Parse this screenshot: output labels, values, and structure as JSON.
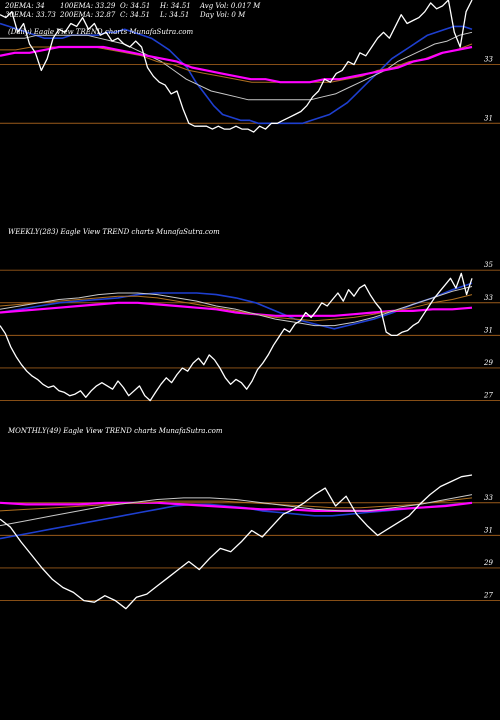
{
  "header": {
    "ema20": "20EMA: 34",
    "ema100": "100EMA: 33.29",
    "open": "O: 34.51",
    "high": "H: 34.51",
    "avg_vol": "Avg Vol: 0.017 M",
    "ema30": "30EMA: 33.73",
    "ema200": "200EMA: 32.87",
    "close": "C: 34.51",
    "low": "L: 34.51",
    "day_vol": "Day Vol: 0  M"
  },
  "chart_data": [
    {
      "type": "line",
      "title": "(Daily) Eagle  View  TREND charts MunafaSutra.com",
      "ylim": [
        30.6,
        35.2
      ],
      "yticks": [
        "33",
        "31"
      ],
      "grid": "horizontal",
      "series": [
        {
          "color": "#ffffff",
          "values": [
            34.7,
            34.6,
            34.8,
            34.1,
            34.4,
            33.7,
            33.4,
            32.8,
            33.2,
            33.9,
            34.2,
            34.1,
            34.4,
            34.3,
            34.6,
            34.2,
            34.4,
            34.0,
            34.1,
            33.8,
            33.9,
            33.7,
            33.6,
            33.8,
            33.6,
            32.9,
            32.6,
            32.4,
            32.3,
            32.0,
            32.1,
            31.5,
            31.0,
            30.9,
            30.9,
            30.9,
            30.8,
            30.9,
            30.8,
            30.8,
            30.9,
            30.8,
            30.8,
            30.7,
            30.9,
            30.8,
            31.0,
            31.0,
            31.1,
            31.2,
            31.3,
            31.4,
            31.6,
            31.9,
            32.1,
            32.5,
            32.4,
            32.7,
            32.8,
            33.1,
            33.0,
            33.4,
            33.3,
            33.6,
            33.9,
            34.1,
            33.9,
            34.3,
            34.7,
            34.4,
            34.5,
            34.6,
            34.8,
            35.1,
            34.9,
            35.0,
            35.2,
            34.1,
            33.6,
            34.8,
            35.2
          ]
        },
        {
          "color": "#1e3fd0",
          "values": [
            34.4,
            34.3,
            34.2,
            34.1,
            34.0,
            33.9,
            33.9,
            33.9,
            34.0,
            34.0,
            34.0,
            34.0,
            34.1,
            34.1,
            34.2,
            34.1,
            34.0,
            33.9,
            33.7,
            33.5,
            33.2,
            32.9,
            32.4,
            32.0,
            31.6,
            31.3,
            31.2,
            31.1,
            31.1,
            31.0,
            31.0,
            31.0,
            31.0,
            31.0,
            31.0,
            31.1,
            31.2,
            31.3,
            31.5,
            31.7,
            32.0,
            32.3,
            32.6,
            32.9,
            33.2,
            33.4,
            33.6,
            33.8,
            34.0,
            34.1,
            34.2,
            34.3,
            34.3,
            34.2
          ]
        },
        {
          "color": "#c8c8c8",
          "values": [
            33.9,
            33.9,
            33.9,
            34.0,
            34.0,
            34.0,
            34.0,
            34.0,
            33.9,
            33.8,
            33.7,
            33.5,
            33.3,
            33.1,
            32.8,
            32.5,
            32.3,
            32.1,
            32.0,
            31.9,
            31.8,
            31.8,
            31.8,
            31.8,
            31.8,
            31.8,
            31.9,
            32.0,
            32.2,
            32.4,
            32.6,
            32.8,
            33.1,
            33.3,
            33.5,
            33.7,
            33.8,
            34.0,
            34.1
          ]
        },
        {
          "color": "#b07020",
          "values": [
            33.5,
            33.5,
            33.6,
            33.6,
            33.6,
            33.6,
            33.6,
            33.5,
            33.4,
            33.3,
            33.1,
            33.0,
            32.8,
            32.7,
            32.6,
            32.5,
            32.4,
            32.4,
            32.4,
            32.4,
            32.4,
            32.4,
            32.5,
            32.6,
            32.8,
            32.9,
            33.1,
            33.2,
            33.4,
            33.5,
            33.7
          ]
        },
        {
          "color": "#ff00ff",
          "values": [
            33.3,
            33.4,
            33.4,
            33.5,
            33.6,
            33.6,
            33.6,
            33.6,
            33.5,
            33.4,
            33.3,
            33.2,
            33.1,
            32.9,
            32.8,
            32.7,
            32.6,
            32.5,
            32.5,
            32.4,
            32.4,
            32.4,
            32.5,
            32.5,
            32.6,
            32.7,
            32.8,
            32.9,
            33.1,
            33.2,
            33.4,
            33.5,
            33.6
          ]
        }
      ]
    },
    {
      "type": "line",
      "title": "WEEKLY(283) Eagle  View  TREND charts MunafaSutra.com",
      "ylim": [
        26.3,
        35.5
      ],
      "yticks": [
        "35",
        "33",
        "31",
        "29",
        "27"
      ],
      "grid": "horizontal",
      "series": [
        {
          "color": "#ffffff",
          "values": [
            31.6,
            31.1,
            30.3,
            29.7,
            29.2,
            28.8,
            28.5,
            28.3,
            28.0,
            27.8,
            27.9,
            27.6,
            27.5,
            27.3,
            27.4,
            27.6,
            27.2,
            27.6,
            27.9,
            28.1,
            27.9,
            27.7,
            28.2,
            27.8,
            27.3,
            27.6,
            27.9,
            27.3,
            27.0,
            27.5,
            28.0,
            28.4,
            28.1,
            28.6,
            29.0,
            28.8,
            29.3,
            29.6,
            29.2,
            29.8,
            29.5,
            29.0,
            28.4,
            28.0,
            28.3,
            28.1,
            27.7,
            28.2,
            28.9,
            29.3,
            29.8,
            30.4,
            30.9,
            31.4,
            31.2,
            31.7,
            31.9,
            32.4,
            32.1,
            32.5,
            33.0,
            32.8,
            33.2,
            33.6,
            33.1,
            33.8,
            33.4,
            33.9,
            34.1,
            33.5,
            33.0,
            32.6,
            31.2,
            31.0,
            31.0,
            31.2,
            31.3,
            31.6,
            31.8,
            32.3,
            32.8,
            33.3,
            33.7,
            34.1,
            34.5,
            33.9,
            34.8,
            33.5,
            34.5
          ]
        },
        {
          "color": "#1e3fd0",
          "values": [
            32.4,
            32.6,
            32.8,
            33.0,
            33.1,
            33.2,
            33.3,
            33.5,
            33.6,
            33.6,
            33.6,
            33.5,
            33.3,
            33.0,
            32.5,
            32.0,
            31.7,
            31.4,
            31.7,
            32.0,
            32.4,
            32.9,
            33.3,
            33.8,
            34.2
          ]
        },
        {
          "color": "#ff00ff",
          "values": [
            32.4,
            32.5,
            32.6,
            32.7,
            32.8,
            32.9,
            33.0,
            33.0,
            32.9,
            32.8,
            32.7,
            32.6,
            32.4,
            32.3,
            32.2,
            32.2,
            32.2,
            32.2,
            32.3,
            32.4,
            32.5,
            32.5,
            32.6,
            32.6,
            32.7
          ]
        },
        {
          "color": "#b07020",
          "values": [
            32.8,
            32.9,
            33.0,
            33.1,
            33.2,
            33.3,
            33.4,
            33.4,
            33.3,
            33.1,
            32.9,
            32.7,
            32.5,
            32.3,
            32.1,
            32.0,
            31.9,
            32.0,
            32.1,
            32.3,
            32.5,
            32.7,
            33.0,
            33.2,
            33.5
          ]
        },
        {
          "color": "#c8c8c8",
          "values": [
            32.6,
            32.8,
            33.0,
            33.2,
            33.3,
            33.5,
            33.6,
            33.6,
            33.5,
            33.3,
            33.1,
            32.8,
            32.6,
            32.3,
            32.0,
            31.8,
            31.6,
            31.6,
            31.8,
            32.1,
            32.5,
            32.9,
            33.3,
            33.7,
            34.0
          ]
        }
      ]
    },
    {
      "type": "line",
      "title": "MONTHLY(49) Eagle  View  TREND charts MunafaSutra.com",
      "ylim": [
        26.3,
        35.5
      ],
      "yticks": [
        "33",
        "31",
        "29",
        "27"
      ],
      "grid": "horizontal",
      "series": [
        {
          "color": "#ffffff",
          "values": [
            32.0,
            31.5,
            30.6,
            29.8,
            29.0,
            28.3,
            27.8,
            27.5,
            27.0,
            26.9,
            27.3,
            27.0,
            26.5,
            27.2,
            27.4,
            27.9,
            28.4,
            28.9,
            29.4,
            28.9,
            29.6,
            30.2,
            30.0,
            30.6,
            31.3,
            30.9,
            31.6,
            32.3,
            32.6,
            33.0,
            33.5,
            33.9,
            32.8,
            33.4,
            32.3,
            31.6,
            31.0,
            31.4,
            31.8,
            32.2,
            32.9,
            33.5,
            34.0,
            34.3,
            34.6,
            34.7
          ]
        },
        {
          "color": "#1e3fd0",
          "values": [
            30.8,
            31.0,
            31.2,
            31.4,
            31.6,
            31.8,
            32.0,
            32.2,
            32.4,
            32.6,
            32.8,
            32.9,
            32.9,
            32.8,
            32.7,
            32.5,
            32.4,
            32.3,
            32.2,
            32.2,
            32.3,
            32.4,
            32.5,
            32.6,
            32.7,
            32.8,
            32.9,
            33.0
          ]
        },
        {
          "color": "#ff00ff",
          "values": [
            33.0,
            32.9,
            32.9,
            32.9,
            33.0,
            33.0,
            33.0,
            32.9,
            32.8,
            32.7,
            32.6,
            32.6,
            32.5,
            32.5,
            32.5,
            32.6,
            32.7,
            32.8,
            33.0
          ]
        },
        {
          "color": "#b07020",
          "values": [
            32.5,
            32.6,
            32.7,
            32.8,
            32.9,
            33.0,
            33.1,
            33.1,
            33.1,
            33.0,
            32.9,
            32.8,
            32.7,
            32.7,
            32.8,
            32.9,
            33.1,
            33.3
          ]
        },
        {
          "color": "#c8c8c8",
          "values": [
            31.6,
            31.9,
            32.2,
            32.5,
            32.8,
            33.0,
            33.2,
            33.3,
            33.3,
            33.2,
            33.0,
            32.8,
            32.6,
            32.5,
            32.5,
            32.7,
            32.9,
            33.2,
            33.5
          ]
        }
      ]
    }
  ]
}
